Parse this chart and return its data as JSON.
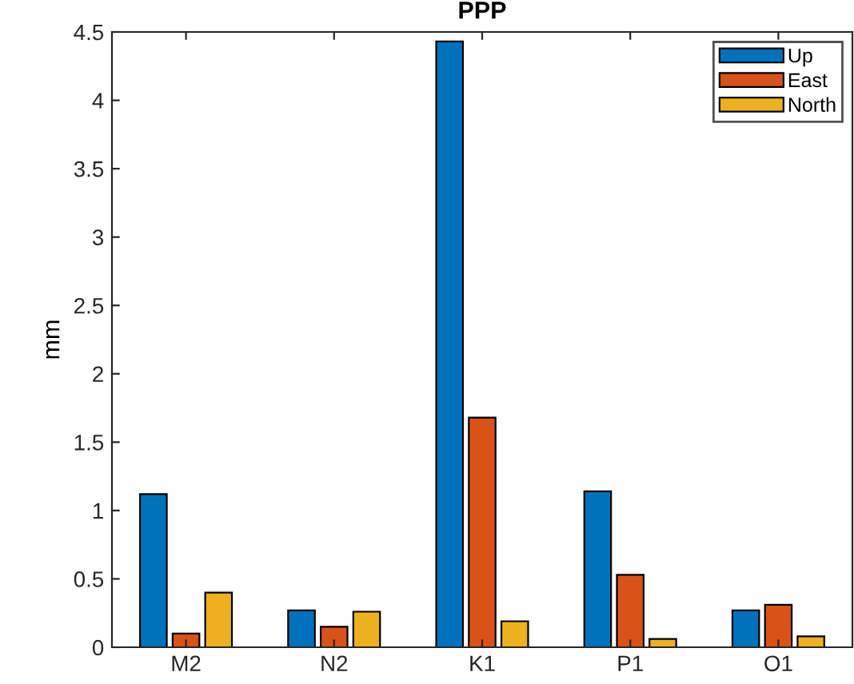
{
  "chart_data": {
    "type": "bar",
    "title": "PPP",
    "ylabel": "mm",
    "categories": [
      "M2",
      "N2",
      "K1",
      "P1",
      "O1"
    ],
    "series": [
      {
        "name": "Up",
        "color": "#0072bd",
        "values": [
          1.12,
          0.27,
          4.43,
          1.14,
          0.27
        ]
      },
      {
        "name": "East",
        "color": "#d95319",
        "values": [
          0.1,
          0.15,
          1.68,
          0.53,
          0.31
        ]
      },
      {
        "name": "North",
        "color": "#edb120",
        "values": [
          0.4,
          0.26,
          0.19,
          0.06,
          0.08
        ]
      }
    ],
    "ylim": [
      0,
      4.5
    ],
    "yticks": [
      0,
      0.5,
      1,
      1.5,
      2,
      2.5,
      3,
      3.5,
      4,
      4.5
    ],
    "grid": false,
    "legend": "top right"
  }
}
